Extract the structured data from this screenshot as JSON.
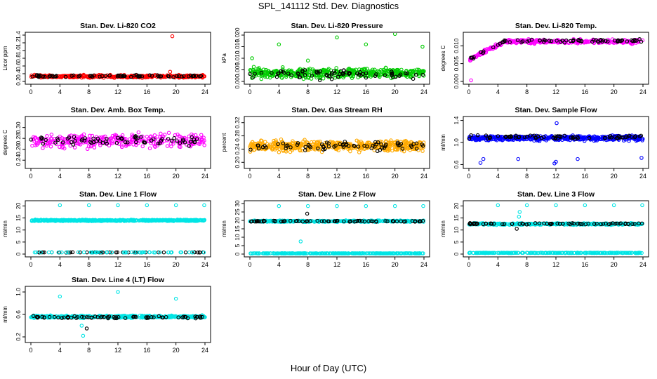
{
  "figure": {
    "title": "SPL_141112  Std. Dev. Diagnostics",
    "xlabel": "Hour of Day (UTC)"
  },
  "chart_data": [
    {
      "type": "scatter",
      "title": "Stan. Dev. Li-820 CO2",
      "ylabel": "Licor ppm",
      "xlim": [
        0,
        24
      ],
      "xticks": [
        0,
        4,
        8,
        12,
        16,
        20,
        24
      ],
      "ylim": [
        0.2,
        1.4
      ],
      "yticks": [
        0.2,
        0.4,
        0.6,
        0.8,
        1.0,
        1.2,
        1.4
      ],
      "ytick_labels": [
        "0.2",
        "0.4",
        "0.6",
        "0.8",
        "1.0",
        "1.2",
        "1.4"
      ],
      "series": [
        {
          "color": "#ff0000",
          "base": 0.33,
          "spread": 0.05,
          "n": 330
        },
        {
          "color": "#000000",
          "base": 0.34,
          "spread": 0.04,
          "n": 70
        }
      ],
      "outliers": [
        {
          "x": 19.5,
          "y": 1.37,
          "color": "#ff0000"
        },
        {
          "x": 19.2,
          "y": 0.45,
          "color": "#ff0000"
        }
      ]
    },
    {
      "type": "scatter",
      "title": "Stan. Dev. Li-820 Pressure",
      "ylabel": "kPa",
      "xlim": [
        0,
        24
      ],
      "xticks": [
        0,
        4,
        8,
        12,
        16,
        20,
        24
      ],
      "ylim": [
        0,
        0.02
      ],
      "yticks": [
        0,
        0.005,
        0.01,
        0.015,
        0.02
      ],
      "ytick_labels": [
        "0.000",
        "0.005",
        "0.010",
        "0.015",
        "0.020"
      ],
      "series": [
        {
          "color": "#00cc00",
          "base": 0.0035,
          "spread": 0.003,
          "n": 450
        },
        {
          "color": "#000000",
          "base": 0.003,
          "spread": 0.003,
          "n": 70
        }
      ],
      "outliers": [
        {
          "x": 0.3,
          "y": 0.01,
          "color": "#00cc00"
        },
        {
          "x": 4.0,
          "y": 0.016,
          "color": "#00cc00"
        },
        {
          "x": 8.0,
          "y": 0.009,
          "color": "#00cc00"
        },
        {
          "x": 12.0,
          "y": 0.019,
          "color": "#00cc00"
        },
        {
          "x": 16.0,
          "y": 0.016,
          "color": "#00cc00"
        },
        {
          "x": 20.0,
          "y": 0.0205,
          "color": "#00cc00"
        },
        {
          "x": 23.8,
          "y": 0.015,
          "color": "#00cc00"
        }
      ]
    },
    {
      "type": "scatter",
      "title": "Stan. Dev. Li-820 Temp.",
      "ylabel": "degrees C",
      "xlim": [
        0,
        24
      ],
      "xticks": [
        0,
        4,
        8,
        12,
        16,
        20,
        24
      ],
      "ylim": [
        0,
        0.013
      ],
      "yticks": [
        0,
        0.005,
        0.01
      ],
      "ytick_labels": [
        "0.000",
        "0.005",
        "0.010"
      ],
      "series": [
        {
          "color": "#ff00ff",
          "shape": "ramp",
          "base": 0.0112,
          "spread": 0.0013,
          "n": 330
        },
        {
          "color": "#000000",
          "shape": "ramp",
          "base": 0.0114,
          "spread": 0.001,
          "n": 70
        }
      ],
      "outliers": [
        {
          "x": 0.3,
          "y": 0.0003,
          "color": "#ff00ff"
        }
      ]
    },
    {
      "type": "scatter",
      "title": "Stan. Dev. Amb. Box Temp.",
      "ylabel": "degrees C",
      "xlim": [
        0,
        24
      ],
      "xticks": [
        0,
        4,
        8,
        12,
        16,
        20,
        24
      ],
      "ylim": [
        0.23,
        0.315
      ],
      "yticks": [
        0.24,
        0.26,
        0.28,
        0.3
      ],
      "ytick_labels": [
        "0.24",
        "0.26",
        "0.28",
        "0.30"
      ],
      "series": [
        {
          "color": "#ff00ff",
          "base": 0.276,
          "spread": 0.018,
          "n": 300
        },
        {
          "color": "#000000",
          "base": 0.276,
          "spread": 0.012,
          "n": 70
        }
      ],
      "outliers": []
    },
    {
      "type": "scatter",
      "title": "Stan. Dev. Gas Stream RH",
      "ylabel": "percent",
      "xlim": [
        0,
        24
      ],
      "xticks": [
        0,
        4,
        8,
        12,
        16,
        20,
        24
      ],
      "ylim": [
        0.19,
        0.33
      ],
      "yticks": [
        0.2,
        0.24,
        0.28,
        0.32
      ],
      "ytick_labels": [
        "0.20",
        "0.24",
        "0.28",
        "0.32"
      ],
      "series": [
        {
          "color": "#ffaa00",
          "base": 0.25,
          "spread": 0.022,
          "n": 500
        },
        {
          "color": "#000000",
          "base": 0.25,
          "spread": 0.02,
          "n": 70
        }
      ],
      "outliers": []
    },
    {
      "type": "scatter",
      "title": "Stan. Dev. Sample Flow",
      "ylabel": "ml/min",
      "xlim": [
        0,
        24
      ],
      "xticks": [
        0,
        4,
        8,
        12,
        16,
        20,
        24
      ],
      "ylim": [
        0.58,
        1.42
      ],
      "yticks": [
        0.6,
        1.0,
        1.4
      ],
      "ytick_labels": [
        "0.6",
        "1.0",
        "1.4"
      ],
      "series": [
        {
          "color": "#0000ff",
          "base": 1.08,
          "spread": 0.06,
          "n": 450
        },
        {
          "color": "#000000",
          "base": 1.1,
          "spread": 0.05,
          "n": 70
        }
      ],
      "outliers": [
        {
          "x": 1.6,
          "y": 0.63,
          "color": "#0000ff"
        },
        {
          "x": 2.0,
          "y": 0.7,
          "color": "#0000ff"
        },
        {
          "x": 6.8,
          "y": 0.7,
          "color": "#0000ff"
        },
        {
          "x": 11.8,
          "y": 0.62,
          "color": "#0000ff"
        },
        {
          "x": 12.0,
          "y": 0.65,
          "color": "#0000ff"
        },
        {
          "x": 12.1,
          "y": 1.35,
          "color": "#0000ff"
        },
        {
          "x": 15.0,
          "y": 0.7,
          "color": "#0000ff"
        },
        {
          "x": 23.8,
          "y": 0.72,
          "color": "#0000ff"
        }
      ]
    },
    {
      "type": "scatter",
      "title": "Stan. Dev. Line 1 Flow",
      "ylabel": "ml/min",
      "xlim": [
        0,
        24
      ],
      "xticks": [
        0,
        4,
        8,
        12,
        16,
        20,
        24
      ],
      "ylim": [
        0,
        21
      ],
      "yticks": [
        0,
        5,
        10,
        15,
        20
      ],
      "ytick_labels": [
        "0",
        "5",
        "10",
        "15",
        "20"
      ],
      "series": [
        {
          "color": "#00e5e5",
          "base": 14,
          "spread": 0.4,
          "n": 500
        },
        {
          "color": "#000000",
          "base": 0.7,
          "spread": 0.1,
          "n": 50
        },
        {
          "color": "#00e5e5",
          "base": 0.7,
          "spread": 0.1,
          "n": 50
        }
      ],
      "outliers": [
        {
          "x": 4.0,
          "y": 20.3,
          "color": "#00e5e5"
        },
        {
          "x": 8.0,
          "y": 20.3,
          "color": "#00e5e5"
        },
        {
          "x": 12.0,
          "y": 20.3,
          "color": "#00e5e5"
        },
        {
          "x": 16.0,
          "y": 20.3,
          "color": "#00e5e5"
        },
        {
          "x": 20.0,
          "y": 20.3,
          "color": "#00e5e5"
        },
        {
          "x": 23.9,
          "y": 20.3,
          "color": "#00e5e5"
        }
      ]
    },
    {
      "type": "scatter",
      "title": "Stan. Dev. Line 2 Flow",
      "ylabel": "ml/min",
      "xlim": [
        0,
        24
      ],
      "xticks": [
        0,
        4,
        8,
        12,
        16,
        20,
        24
      ],
      "ylim": [
        0,
        30
      ],
      "yticks": [
        0,
        5,
        10,
        15,
        20,
        25,
        30
      ],
      "ytick_labels": [
        "0",
        "5",
        "10",
        "15",
        "20",
        "25",
        "30"
      ],
      "series": [
        {
          "color": "#00e5e5",
          "base": 19.5,
          "spread": 0.6,
          "n": 400
        },
        {
          "color": "#000000",
          "base": 19.5,
          "spread": 0.5,
          "n": 70
        },
        {
          "color": "#00e5e5",
          "base": 0.4,
          "spread": 0.15,
          "n": 300
        }
      ],
      "outliers": [
        {
          "x": 4.0,
          "y": 28.5,
          "color": "#00e5e5"
        },
        {
          "x": 8.0,
          "y": 28.5,
          "color": "#00e5e5"
        },
        {
          "x": 12.0,
          "y": 28.5,
          "color": "#00e5e5"
        },
        {
          "x": 16.0,
          "y": 28.5,
          "color": "#00e5e5"
        },
        {
          "x": 20.0,
          "y": 28.5,
          "color": "#00e5e5"
        },
        {
          "x": 23.9,
          "y": 28.5,
          "color": "#00e5e5"
        },
        {
          "x": 7.0,
          "y": 7.5,
          "color": "#00e5e5"
        },
        {
          "x": 7.9,
          "y": 24.0,
          "color": "#000000"
        }
      ]
    },
    {
      "type": "scatter",
      "title": "Stan. Dev. Line 3 Flow",
      "ylabel": "ml/min",
      "xlim": [
        0,
        24
      ],
      "xticks": [
        0,
        4,
        8,
        12,
        16,
        20,
        24
      ],
      "ylim": [
        0,
        21
      ],
      "yticks": [
        0,
        5,
        10,
        15,
        20
      ],
      "ytick_labels": [
        "0",
        "5",
        "10",
        "15",
        "20"
      ],
      "series": [
        {
          "color": "#00e5e5",
          "base": 12.5,
          "spread": 0.5,
          "n": 400
        },
        {
          "color": "#000000",
          "base": 12.6,
          "spread": 0.4,
          "n": 70
        },
        {
          "color": "#00e5e5",
          "base": 0.5,
          "spread": 0.15,
          "n": 250
        }
      ],
      "outliers": [
        {
          "x": 4.0,
          "y": 20.3,
          "color": "#00e5e5"
        },
        {
          "x": 8.0,
          "y": 20.3,
          "color": "#00e5e5"
        },
        {
          "x": 12.0,
          "y": 20.3,
          "color": "#00e5e5"
        },
        {
          "x": 16.0,
          "y": 20.3,
          "color": "#00e5e5"
        },
        {
          "x": 20.0,
          "y": 20.3,
          "color": "#00e5e5"
        },
        {
          "x": 23.9,
          "y": 20.3,
          "color": "#00e5e5"
        },
        {
          "x": 7.0,
          "y": 17.5,
          "color": "#00e5e5"
        },
        {
          "x": 6.9,
          "y": 15.5,
          "color": "#00e5e5"
        },
        {
          "x": 6.6,
          "y": 10.5,
          "color": "#000000"
        }
      ]
    },
    {
      "type": "scatter",
      "title": "Stan. Dev. Line 4 (LT) Flow",
      "ylabel": "ml/min",
      "xlim": [
        0,
        24
      ],
      "xticks": [
        0,
        4,
        8,
        12,
        16,
        20,
        24
      ],
      "ylim": [
        0.15,
        1.05
      ],
      "yticks": [
        0.2,
        0.6,
        1.0
      ],
      "ytick_labels": [
        "0.2",
        "0.6",
        "1.0"
      ],
      "series": [
        {
          "color": "#00e5e5",
          "base": 0.56,
          "spread": 0.03,
          "n": 400
        },
        {
          "color": "#000000",
          "base": 0.55,
          "spread": 0.03,
          "n": 70
        }
      ],
      "outliers": [
        {
          "x": 4.0,
          "y": 0.92,
          "color": "#00e5e5"
        },
        {
          "x": 12.0,
          "y": 1.0,
          "color": "#00e5e5"
        },
        {
          "x": 20.0,
          "y": 0.88,
          "color": "#00e5e5"
        },
        {
          "x": 7.0,
          "y": 0.4,
          "color": "#00e5e5"
        },
        {
          "x": 7.2,
          "y": 0.22,
          "color": "#00e5e5"
        },
        {
          "x": 7.7,
          "y": 0.35,
          "color": "#000000"
        }
      ]
    }
  ]
}
